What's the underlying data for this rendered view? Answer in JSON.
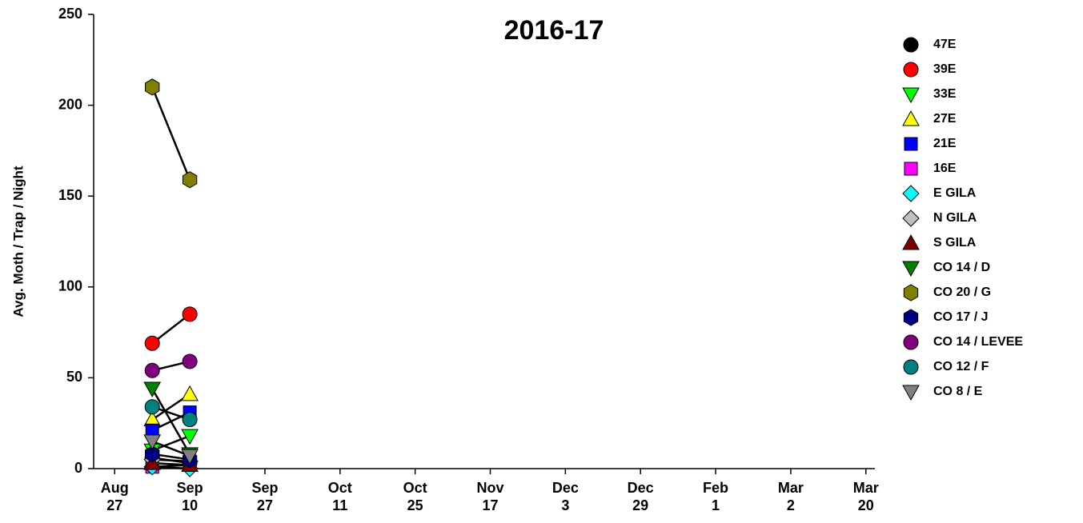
{
  "chart_data": {
    "type": "line",
    "title": "2016-17",
    "y_label": "Avg. Moth / Trap / Night",
    "x": [
      0.5,
      1
    ],
    "xlim": [
      -0.28,
      10.12
    ],
    "xticks": [
      {
        "value": 0,
        "label": "Aug 27"
      },
      {
        "value": 1,
        "label": "Sep 10"
      },
      {
        "value": 2,
        "label": "Sep 27"
      },
      {
        "value": 3,
        "label": "Oct 11"
      },
      {
        "value": 4,
        "label": "Oct 25"
      },
      {
        "value": 5,
        "label": "Nov 17"
      },
      {
        "value": 6,
        "label": "Dec 3"
      },
      {
        "value": 7,
        "label": "Dec 29"
      },
      {
        "value": 8,
        "label": "Feb 1"
      },
      {
        "value": 9,
        "label": "Mar 2"
      },
      {
        "value": 10,
        "label": "Mar 20"
      }
    ],
    "ylim": [
      0,
      250
    ],
    "yticks": [
      0,
      50,
      100,
      150,
      200,
      250
    ],
    "line_color": "#000000",
    "series": [
      {
        "name": "47E",
        "color": "#000000",
        "marker": "circle",
        "values": [
          6,
          3
        ]
      },
      {
        "name": "39E",
        "color": "#ff0000",
        "marker": "circle",
        "values": [
          69,
          85
        ]
      },
      {
        "name": "33E",
        "color": "#00ff00",
        "marker": "triangle-down",
        "values": [
          10,
          18
        ]
      },
      {
        "name": "27E",
        "color": "#ffff00",
        "marker": "triangle-up",
        "values": [
          27,
          41
        ]
      },
      {
        "name": "21E",
        "color": "#0000ff",
        "marker": "square",
        "values": [
          21,
          31
        ]
      },
      {
        "name": "16E",
        "color": "#ff00ff",
        "marker": "square",
        "values": [
          1,
          2
        ]
      },
      {
        "name": "E GILA",
        "color": "#00ffff",
        "marker": "diamond",
        "values": [
          1,
          0
        ]
      },
      {
        "name": "N GILA",
        "color": "#c0c0c0",
        "marker": "diamond",
        "values": [
          5,
          4
        ]
      },
      {
        "name": "S GILA",
        "color": "#800000",
        "marker": "triangle-up",
        "values": [
          3,
          2
        ]
      },
      {
        "name": "CO 14 / D",
        "color": "#008000",
        "marker": "triangle-down",
        "values": [
          44,
          8
        ]
      },
      {
        "name": "CO 20 / G",
        "color": "#808000",
        "marker": "hexagon",
        "values": [
          210,
          159
        ]
      },
      {
        "name": "CO 17 / J",
        "color": "#000080",
        "marker": "hexagon",
        "values": [
          8,
          5
        ]
      },
      {
        "name": "CO 14 / LEVEE",
        "color": "#800080",
        "marker": "circle",
        "values": [
          54,
          59
        ]
      },
      {
        "name": "CO 12 / F",
        "color": "#008080",
        "marker": "circle",
        "values": [
          34,
          27
        ]
      },
      {
        "name": "CO 8 / E",
        "color": "#808080",
        "marker": "triangle-down",
        "values": [
          15,
          7
        ]
      }
    ]
  }
}
